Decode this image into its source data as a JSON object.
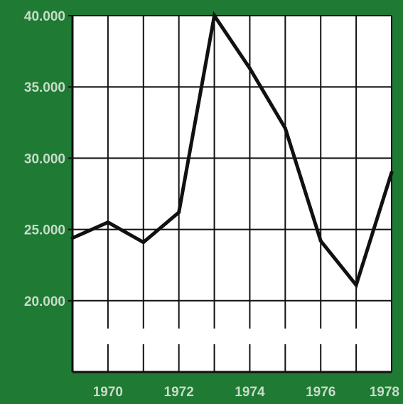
{
  "colors": {
    "background": "#1f7a34",
    "plot": "#ffffff",
    "grid": "#111111",
    "line": "#111111",
    "ticklabel": "#c9dcc9"
  },
  "chart_data": {
    "type": "line",
    "title": "",
    "xlabel": "",
    "ylabel": "",
    "x": [
      1969,
      1970,
      1971,
      1972,
      1973,
      1974,
      1975,
      1976,
      1977,
      1978
    ],
    "series": [
      {
        "values": [
          24400,
          25500,
          24100,
          26200,
          40000,
          36300,
          32100,
          24200,
          21100,
          29000
        ]
      }
    ],
    "xlim": [
      1969,
      1978
    ],
    "ylim": [
      15000,
      40000
    ],
    "yticks": [
      20000,
      25000,
      30000,
      35000,
      40000
    ],
    "ytick_labels": [
      "20.000",
      "25.000",
      "30.000",
      "35.000",
      "40.000"
    ],
    "xtick_labels": [
      {
        "x": 1970,
        "label": "1970"
      },
      {
        "x": 1972,
        "label": "1972"
      },
      {
        "x": 1974,
        "label": "1974"
      },
      {
        "x": 1976,
        "label": "1976"
      },
      {
        "x": 1978,
        "label": "1978"
      }
    ],
    "grid": true,
    "legend": "none"
  }
}
